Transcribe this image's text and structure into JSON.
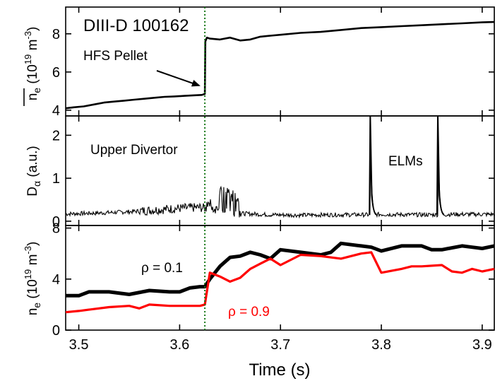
{
  "chart_data": [
    {
      "panel": "top",
      "type": "line",
      "ylabel": "n̅e (10¹⁹ m⁻³)",
      "ylabel_parts": {
        "base": "n",
        "sub": "e",
        "unit_open": " (10",
        "unit_exp": "19",
        "unit_mid": " m",
        "unit_exp2": "-3",
        "unit_close": ")"
      },
      "ylim": [
        3.7,
        9.4
      ],
      "yticks": [
        4,
        6,
        8
      ],
      "xlim": [
        3.487,
        3.912
      ],
      "annotations": {
        "shot": "DIII-D  100162",
        "pellet": "HFS Pellet"
      },
      "series": [
        {
          "color": "#000000",
          "x": [
            3.487,
            3.495,
            3.505,
            3.515,
            3.525,
            3.535,
            3.545,
            3.555,
            3.565,
            3.575,
            3.585,
            3.595,
            3.605,
            3.615,
            3.622,
            3.625,
            3.6255,
            3.627,
            3.63,
            3.64,
            3.65,
            3.66,
            3.67,
            3.68,
            3.69,
            3.7,
            3.72,
            3.74,
            3.76,
            3.78,
            3.8,
            3.82,
            3.84,
            3.86,
            3.88,
            3.9,
            3.912
          ],
          "y": [
            4.1,
            4.15,
            4.2,
            4.3,
            4.4,
            4.45,
            4.5,
            4.55,
            4.6,
            4.65,
            4.7,
            4.72,
            4.75,
            4.78,
            4.8,
            4.85,
            7.6,
            7.8,
            7.75,
            7.7,
            7.8,
            7.65,
            7.7,
            7.85,
            7.9,
            7.95,
            8.05,
            8.1,
            8.2,
            8.3,
            8.35,
            8.4,
            8.45,
            8.5,
            8.55,
            8.6,
            8.62
          ]
        }
      ]
    },
    {
      "panel": "middle",
      "type": "line",
      "ylabel_parts": {
        "base": "D",
        "sub": "α",
        "rest": " (a.u.)"
      },
      "ylim": [
        -0.1,
        2.45
      ],
      "yticks": [
        0,
        1,
        2
      ],
      "xlim": [
        3.487,
        3.912
      ],
      "annotations": {
        "divertor": "Upper Divertor",
        "elms": "ELMs"
      },
      "series": [
        {
          "color": "#000000",
          "baseline_x": [
            3.487,
            3.52,
            3.55,
            3.58,
            3.6,
            3.62,
            3.625,
            3.64,
            3.66,
            3.69,
            3.72,
            3.75,
            3.78,
            3.789,
            3.8,
            3.83,
            3.856,
            3.87,
            3.89,
            3.912
          ],
          "baseline_y": [
            0.17,
            0.19,
            0.22,
            0.27,
            0.3,
            0.32,
            0.3,
            0.28,
            0.18,
            0.15,
            0.14,
            0.15,
            0.15,
            0.15,
            0.16,
            0.15,
            0.15,
            0.16,
            0.16,
            0.16
          ],
          "noise_amplitude": 0.05,
          "burst_x": [
            3.628,
            3.64,
            3.648,
            3.652,
            3.657,
            3.66
          ],
          "burst_y": [
            0.55,
            0.85,
            0.9,
            0.75,
            0.65,
            0.15
          ],
          "elm_peaks_x": [
            3.789,
            3.856
          ],
          "elm_peaks_y": [
            2.45,
            2.45
          ]
        }
      ]
    },
    {
      "panel": "bottom",
      "type": "line",
      "ylabel_parts": {
        "base": "n",
        "sub": "e",
        "unit_open": " (10",
        "unit_exp": "19",
        "unit_mid": " m",
        "unit_exp2": "-3",
        "unit_close": ")"
      },
      "xlabel": "Time (s)",
      "ylim": [
        0,
        8.2
      ],
      "yticks": [
        0,
        4,
        8
      ],
      "xlim": [
        3.487,
        3.912
      ],
      "xticks": [
        3.5,
        3.6,
        3.7,
        3.8,
        3.9
      ],
      "xtick_labels": [
        "3.5",
        "3.6",
        "3.7",
        "3.8",
        "3.9"
      ],
      "pellet_time": 3.625,
      "series": [
        {
          "name": "ρ = 0.1",
          "color": "#000000",
          "x": [
            3.487,
            3.5,
            3.51,
            3.53,
            3.55,
            3.57,
            3.59,
            3.6,
            3.61,
            3.62,
            3.625,
            3.63,
            3.64,
            3.65,
            3.66,
            3.67,
            3.68,
            3.69,
            3.7,
            3.72,
            3.74,
            3.75,
            3.76,
            3.78,
            3.79,
            3.8,
            3.82,
            3.84,
            3.85,
            3.86,
            3.88,
            3.89,
            3.9,
            3.912
          ],
          "y": [
            2.7,
            2.7,
            3.0,
            3.0,
            2.8,
            3.1,
            3.0,
            3.0,
            3.3,
            3.4,
            3.4,
            4.0,
            5.0,
            5.7,
            5.8,
            6.1,
            5.9,
            5.6,
            6.3,
            6.1,
            5.9,
            6.1,
            6.8,
            6.6,
            6.5,
            6.2,
            6.6,
            6.6,
            6.3,
            6.3,
            6.6,
            6.5,
            6.4,
            6.6
          ]
        },
        {
          "name": "ρ = 0.9",
          "color": "#ff0000",
          "x": [
            3.487,
            3.5,
            3.51,
            3.53,
            3.55,
            3.56,
            3.57,
            3.59,
            3.6,
            3.61,
            3.62,
            3.625,
            3.63,
            3.64,
            3.65,
            3.66,
            3.67,
            3.68,
            3.69,
            3.7,
            3.72,
            3.74,
            3.76,
            3.78,
            3.79,
            3.8,
            3.82,
            3.83,
            3.84,
            3.86,
            3.87,
            3.88,
            3.89,
            3.9,
            3.912
          ],
          "y": [
            1.4,
            1.5,
            1.6,
            1.8,
            1.9,
            1.7,
            2.0,
            1.9,
            1.9,
            1.9,
            1.9,
            2.0,
            4.5,
            4.2,
            3.8,
            4.1,
            4.8,
            5.2,
            5.6,
            5.1,
            5.9,
            5.8,
            5.6,
            6.0,
            6.1,
            4.5,
            4.8,
            5.0,
            5.0,
            5.1,
            4.6,
            4.5,
            4.8,
            4.6,
            4.8
          ]
        }
      ]
    }
  ]
}
